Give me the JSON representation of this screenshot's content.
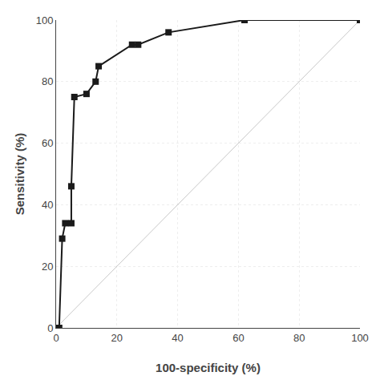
{
  "chart_data": {
    "type": "line",
    "x": [
      0,
      1,
      2,
      3,
      5,
      5,
      6,
      10,
      13,
      14,
      25,
      27,
      37,
      62,
      100
    ],
    "values": [
      0,
      0,
      29,
      34,
      34,
      46,
      75,
      76,
      80,
      85,
      92,
      92,
      96,
      100,
      100
    ],
    "color": "#1a1a1a",
    "marker": "square",
    "reference_line": {
      "x": [
        0,
        100
      ],
      "y": [
        0,
        100
      ],
      "color": "#c8c8c8"
    },
    "xlabel": "100-specificity (%)",
    "ylabel": "Sensitivity (%)",
    "xlim": [
      0,
      100
    ],
    "ylim": [
      0,
      100
    ],
    "xticks": [
      0,
      20,
      40,
      60,
      80,
      100
    ],
    "yticks": [
      0,
      20,
      40,
      60,
      80,
      100
    ],
    "grid": true
  }
}
